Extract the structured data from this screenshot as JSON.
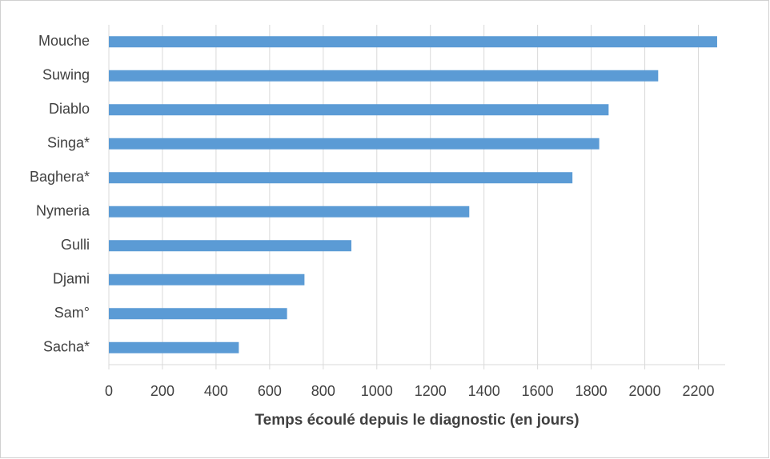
{
  "chart_data": {
    "type": "barh",
    "categories": [
      "Mouche",
      "Suwing",
      "Diablo",
      "Singa*",
      "Baghera*",
      "Nymeria",
      "Gulli",
      "Djami",
      "Sam°",
      "Sacha*"
    ],
    "values": [
      2270,
      2050,
      1865,
      1830,
      1730,
      1345,
      905,
      730,
      665,
      485
    ],
    "color": "#5b9bd5",
    "xlabel": "Temps écoulé depuis le diagnostic (en jours)",
    "xlim": [
      0,
      2300
    ],
    "xticks": [
      0,
      200,
      400,
      600,
      800,
      1000,
      1200,
      1400,
      1600,
      1800,
      2000,
      2200
    ],
    "grid": true
  }
}
